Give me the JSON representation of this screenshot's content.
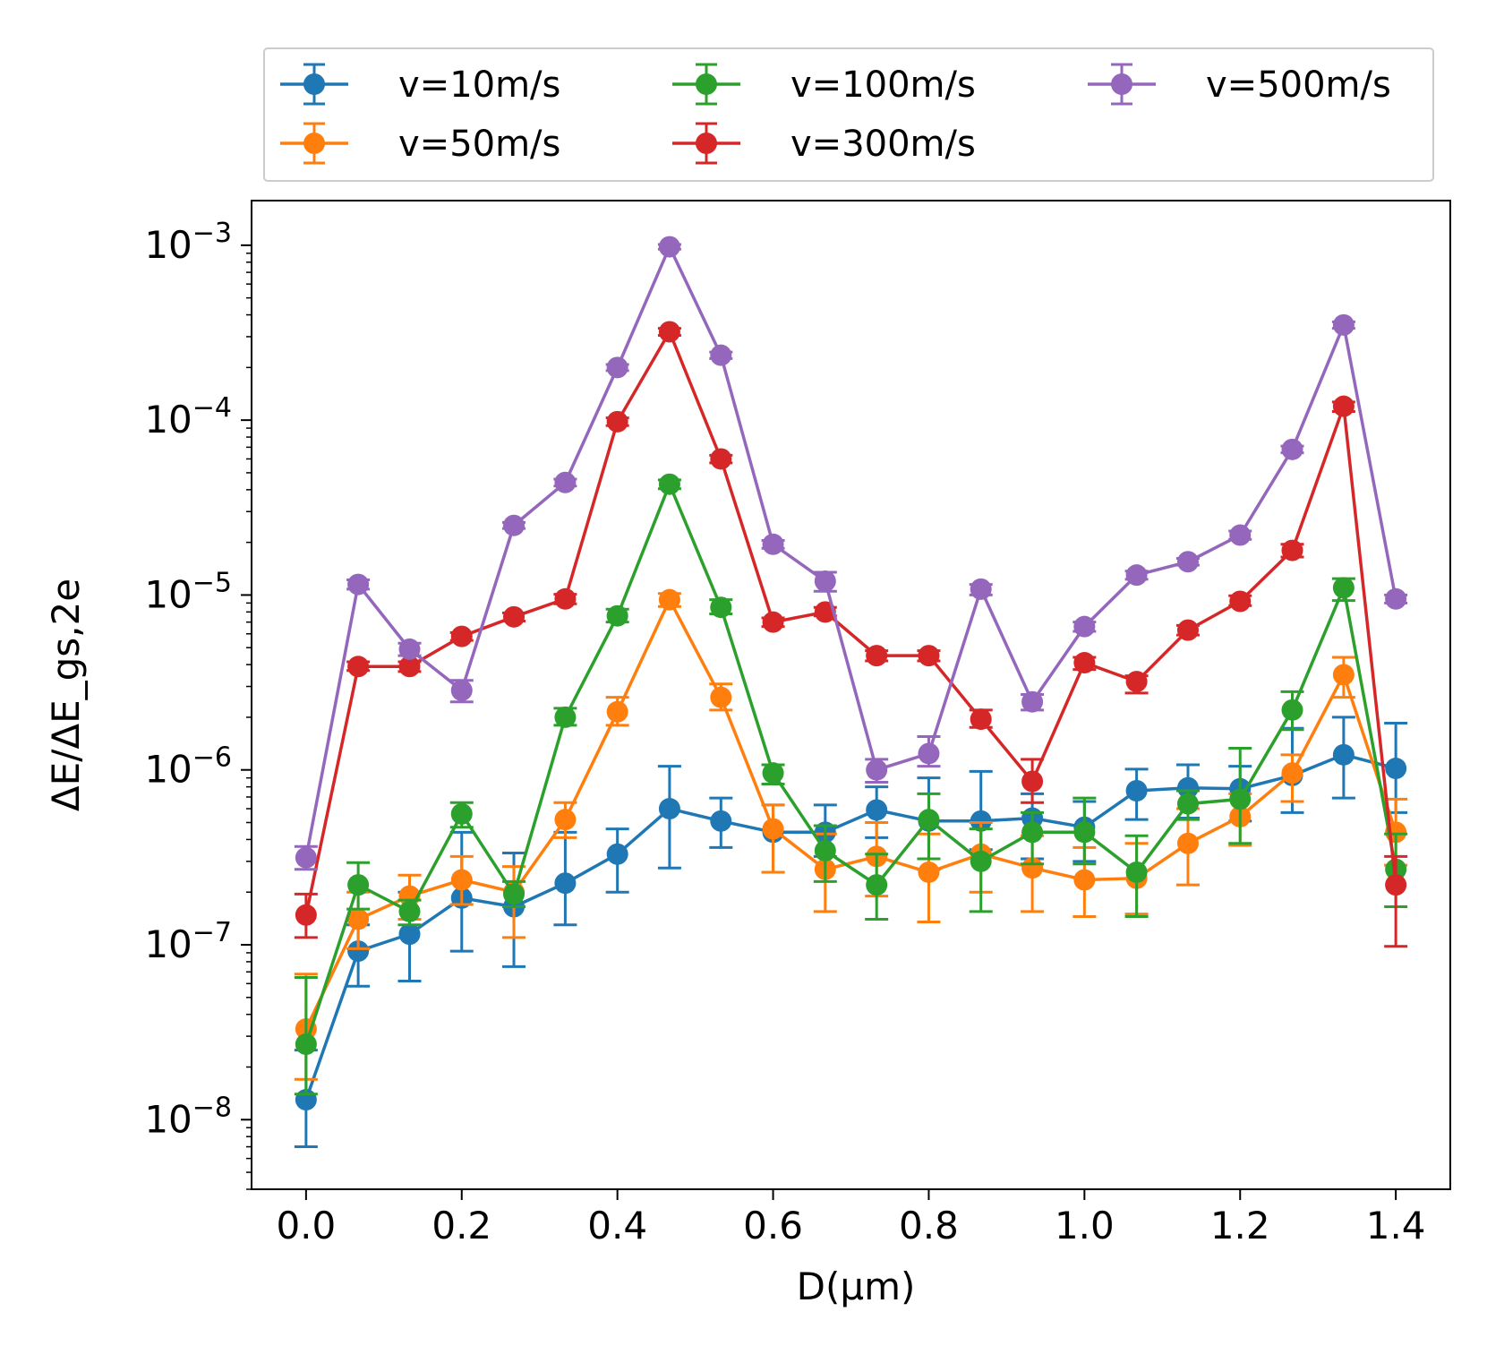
{
  "chart_data": {
    "type": "line",
    "title": "",
    "xlabel": "D(μm)",
    "ylabel": "ΔE/ΔE_gs,2e",
    "x_scale": "linear",
    "y_scale": "log",
    "xlim": [
      -0.07,
      1.47
    ],
    "ylim": [
      4e-09,
      0.0018
    ],
    "x_ticks": [
      0.0,
      0.2,
      0.4,
      0.6,
      0.8,
      1.0,
      1.2,
      1.4
    ],
    "x_tick_labels": [
      "0.0",
      "0.2",
      "0.4",
      "0.6",
      "0.8",
      "1.0",
      "1.2",
      "1.4"
    ],
    "y_ticks": [
      1e-08,
      1e-07,
      1e-06,
      1e-05,
      0.0001,
      0.001
    ],
    "y_tick_labels": [
      "10^-8",
      "10^-7",
      "10^-6",
      "10^-5",
      "10^-4",
      "10^-3"
    ],
    "legend": {
      "placement": "top",
      "columns": 3
    },
    "x": [
      0.0,
      0.067,
      0.133,
      0.2,
      0.267,
      0.333,
      0.4,
      0.467,
      0.533,
      0.6,
      0.667,
      0.733,
      0.8,
      0.867,
      0.933,
      1.0,
      1.067,
      1.133,
      1.2,
      1.267,
      1.333,
      1.4
    ],
    "series": [
      {
        "name": "v=10m/s",
        "color": "#1f77b4",
        "values": [
          1.3e-08,
          9.2e-08,
          1.15e-07,
          1.85e-07,
          1.65e-07,
          2.25e-07,
          3.3e-07,
          6e-07,
          5.1e-07,
          4.4e-07,
          4.4e-07,
          5.9e-07,
          5.1e-07,
          5.1e-07,
          5.3e-07,
          4.7e-07,
          7.6e-07,
          7.9e-07,
          7.8e-07,
          9.3e-07,
          1.22e-06,
          1.02e-06
        ],
        "err_low": [
          7e-09,
          5.8e-08,
          6.2e-08,
          9.2e-08,
          7.5e-08,
          1.3e-07,
          2e-07,
          2.75e-07,
          3.6e-07,
          2.6e-07,
          3.2e-07,
          4.1e-07,
          2.7e-07,
          3.5e-07,
          3.1e-07,
          3e-07,
          5.2e-07,
          5.3e-07,
          5.1e-07,
          5.7e-07,
          6.9e-07,
          5.7e-07
        ],
        "err_high": [
          2.5e-08,
          1.3e-07,
          2e-07,
          4.4e-07,
          3.35e-07,
          4.4e-07,
          4.6e-07,
          1.05e-06,
          6.9e-07,
          6.3e-07,
          6.3e-07,
          8e-07,
          9e-07,
          9.8e-07,
          7.3e-07,
          6.6e-07,
          1.01e-06,
          1.07e-06,
          1.05e-06,
          1.73e-06,
          2e-06,
          1.85e-06
        ]
      },
      {
        "name": "v=50m/s",
        "color": "#ff7f0e",
        "values": [
          3.3e-08,
          1.4e-07,
          1.9e-07,
          2.35e-07,
          2e-07,
          5.2e-07,
          2.15e-06,
          9.4e-06,
          2.6e-06,
          4.6e-07,
          2.7e-07,
          3.2e-07,
          2.6e-07,
          3.3e-07,
          2.75e-07,
          2.35e-07,
          2.4e-07,
          3.8e-07,
          5.4e-07,
          9.6e-07,
          3.5e-06,
          4.4e-07
        ],
        "err_low": [
          1.7e-08,
          9.5e-08,
          1.4e-07,
          1.7e-07,
          1.1e-07,
          4.1e-07,
          1.8e-06,
          8.6e-06,
          2.2e-06,
          2.6e-07,
          1.55e-07,
          1.9e-07,
          1.35e-07,
          2e-07,
          1.55e-07,
          1.45e-07,
          1.5e-07,
          2.2e-07,
          3.7e-07,
          6.6e-07,
          2.6e-06,
          2.85e-07
        ],
        "err_high": [
          6.8e-08,
          2e-07,
          2.5e-07,
          3.2e-07,
          2.8e-07,
          6.5e-07,
          2.6e-06,
          1.02e-05,
          3.1e-06,
          6.3e-07,
          4.3e-07,
          5e-07,
          4.3e-07,
          5e-07,
          4.2e-07,
          3.6e-07,
          3.8e-07,
          6e-07,
          7.3e-07,
          1.22e-06,
          4.4e-06,
          6.8e-07
        ]
      },
      {
        "name": "v=100m/s",
        "color": "#2ca02c",
        "values": [
          2.7e-08,
          2.2e-07,
          1.55e-07,
          5.6e-07,
          1.95e-07,
          2e-06,
          7.6e-06,
          4.3e-05,
          8.5e-06,
          9.6e-07,
          3.45e-07,
          2.2e-07,
          5.2e-07,
          3e-07,
          4.4e-07,
          4.4e-07,
          2.6e-07,
          6.4e-07,
          6.8e-07,
          2.2e-06,
          1.1e-05,
          2.7e-07
        ],
        "err_low": [
          1.4e-08,
          1.6e-07,
          1.3e-07,
          4.7e-07,
          1.65e-07,
          1.8e-06,
          7e-06,
          4.05e-05,
          7.8e-06,
          8.3e-07,
          2.3e-07,
          1.4e-07,
          3.1e-07,
          1.55e-07,
          2.9e-07,
          2.9e-07,
          1.45e-07,
          5.2e-07,
          3.8e-07,
          1.7e-06,
          9.3e-06,
          1.65e-07
        ],
        "err_high": [
          6.5e-08,
          2.95e-07,
          1.8e-07,
          6.5e-07,
          2.3e-07,
          2.25e-06,
          8.3e-06,
          4.55e-05,
          9.4e-06,
          1.07e-06,
          4.8e-07,
          3.3e-07,
          7.3e-07,
          4.6e-07,
          5.7e-07,
          6.9e-07,
          4.2e-07,
          7.6e-07,
          1.33e-06,
          2.8e-06,
          1.24e-05,
          4.3e-07
        ]
      },
      {
        "name": "v=300m/s",
        "color": "#d62728",
        "values": [
          1.48e-07,
          3.9e-06,
          3.9e-06,
          5.8e-06,
          7.5e-06,
          9.5e-06,
          9.8e-05,
          0.00032,
          6e-05,
          7e-06,
          8e-06,
          4.5e-06,
          4.5e-06,
          1.95e-06,
          8.6e-07,
          4.1e-06,
          3.2e-06,
          6.3e-06,
          9.2e-06,
          1.8e-05,
          0.00012,
          2.2e-07
        ],
        "err_low": [
          1.1e-07,
          3.7e-06,
          3.65e-06,
          5.5e-06,
          7.1e-06,
          8.9e-06,
          9.3e-05,
          0.000305,
          5.7e-05,
          6.6e-06,
          7.6e-06,
          4.2e-06,
          4.2e-06,
          1.75e-06,
          6.5e-07,
          3.75e-06,
          2.75e-06,
          5.9e-06,
          8.7e-06,
          1.65e-05,
          0.000112,
          9.8e-08
        ],
        "err_high": [
          1.95e-07,
          4.15e-06,
          4.15e-06,
          6.1e-06,
          7.9e-06,
          1.01e-05,
          0.000103,
          0.000335,
          6.3e-05,
          7.4e-06,
          8.5e-06,
          4.8e-06,
          4.8e-06,
          2.2e-06,
          1.15e-06,
          4.4e-06,
          3.45e-06,
          6.7e-06,
          9.9e-06,
          1.95e-05,
          0.000127,
          3.2e-07
        ]
      },
      {
        "name": "v=500m/s",
        "color": "#9467bd",
        "values": [
          3.15e-07,
          1.15e-05,
          4.9e-06,
          2.85e-06,
          2.5e-05,
          4.4e-05,
          0.0002,
          0.00098,
          0.000235,
          1.95e-05,
          1.2e-05,
          1e-06,
          1.24e-06,
          1.08e-05,
          2.45e-06,
          6.6e-06,
          1.3e-05,
          1.55e-05,
          2.2e-05,
          6.8e-05,
          0.00035,
          9.5e-06
        ],
        "err_low": [
          2.7e-07,
          1.08e-05,
          4.5e-06,
          2.45e-06,
          2.4e-05,
          4.2e-05,
          0.000192,
          0.00095,
          0.000225,
          1.85e-05,
          1.05e-05,
          8.5e-07,
          1.05e-06,
          1e-05,
          2.2e-06,
          6.2e-06,
          1.23e-05,
          1.48e-05,
          2.08e-05,
          6.5e-05,
          0.000335,
          9e-06
        ],
        "err_high": [
          3.65e-07,
          1.22e-05,
          5.3e-06,
          3.25e-06,
          2.6e-05,
          4.6e-05,
          0.000208,
          0.00101,
          0.000245,
          2.05e-05,
          1.35e-05,
          1.15e-06,
          1.55e-06,
          1.15e-05,
          2.7e-06,
          7e-06,
          1.37e-05,
          1.62e-05,
          2.32e-05,
          7.1e-05,
          0.000365,
          1e-05
        ]
      }
    ]
  }
}
